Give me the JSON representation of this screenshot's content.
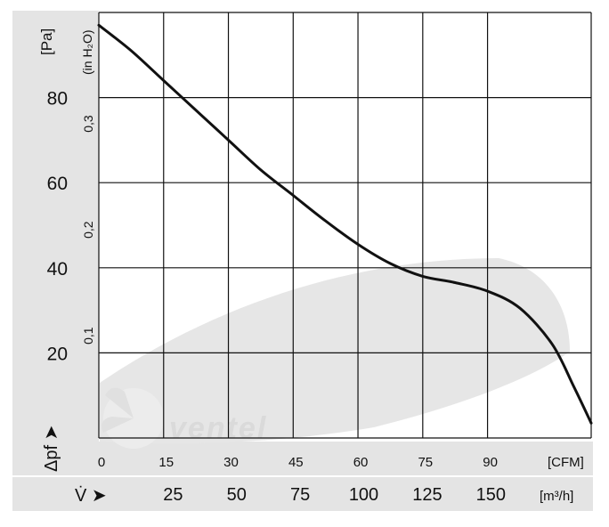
{
  "chart_data": {
    "type": "line",
    "y_unit": "[Pa]",
    "y2_unit": "(in H₂O)",
    "x_unit_top": "[CFM]",
    "x_unit_bottom": "[m³/h]",
    "ylabel_symbol": "Δpf ➤",
    "xlabel_symbol": "V̇ ➤",
    "xlim": [
      0,
      114
    ],
    "ylim": [
      0,
      100
    ],
    "grid": true,
    "x_ticks_cfm": [
      "0",
      "15",
      "30",
      "45",
      "60",
      "75",
      "90"
    ],
    "x_ticks_m3h": [
      "25",
      "50",
      "75",
      "100",
      "125",
      "150"
    ],
    "y_ticks_pa": [
      "20",
      "40",
      "60",
      "80"
    ],
    "y_ticks_inh2o": [
      "0,1",
      "0,2",
      "0,3"
    ],
    "series": [
      {
        "x": [
          0,
          7.5,
          15,
          22.5,
          30,
          37.5,
          45,
          52.5,
          60,
          67.5,
          75,
          82.5,
          90,
          97.5,
          105,
          110,
          114
        ],
        "y": [
          97,
          91,
          84,
          77,
          70,
          63,
          57,
          51,
          45.5,
          41,
          38,
          36.5,
          34.5,
          30.5,
          22,
          12,
          3.5
        ]
      }
    ],
    "watermark": "ventel",
    "colors": {
      "curve": "#111111",
      "grid": "#111111",
      "panel": "#e4e4e4",
      "fan_shadow": "#e6e6e6"
    }
  }
}
